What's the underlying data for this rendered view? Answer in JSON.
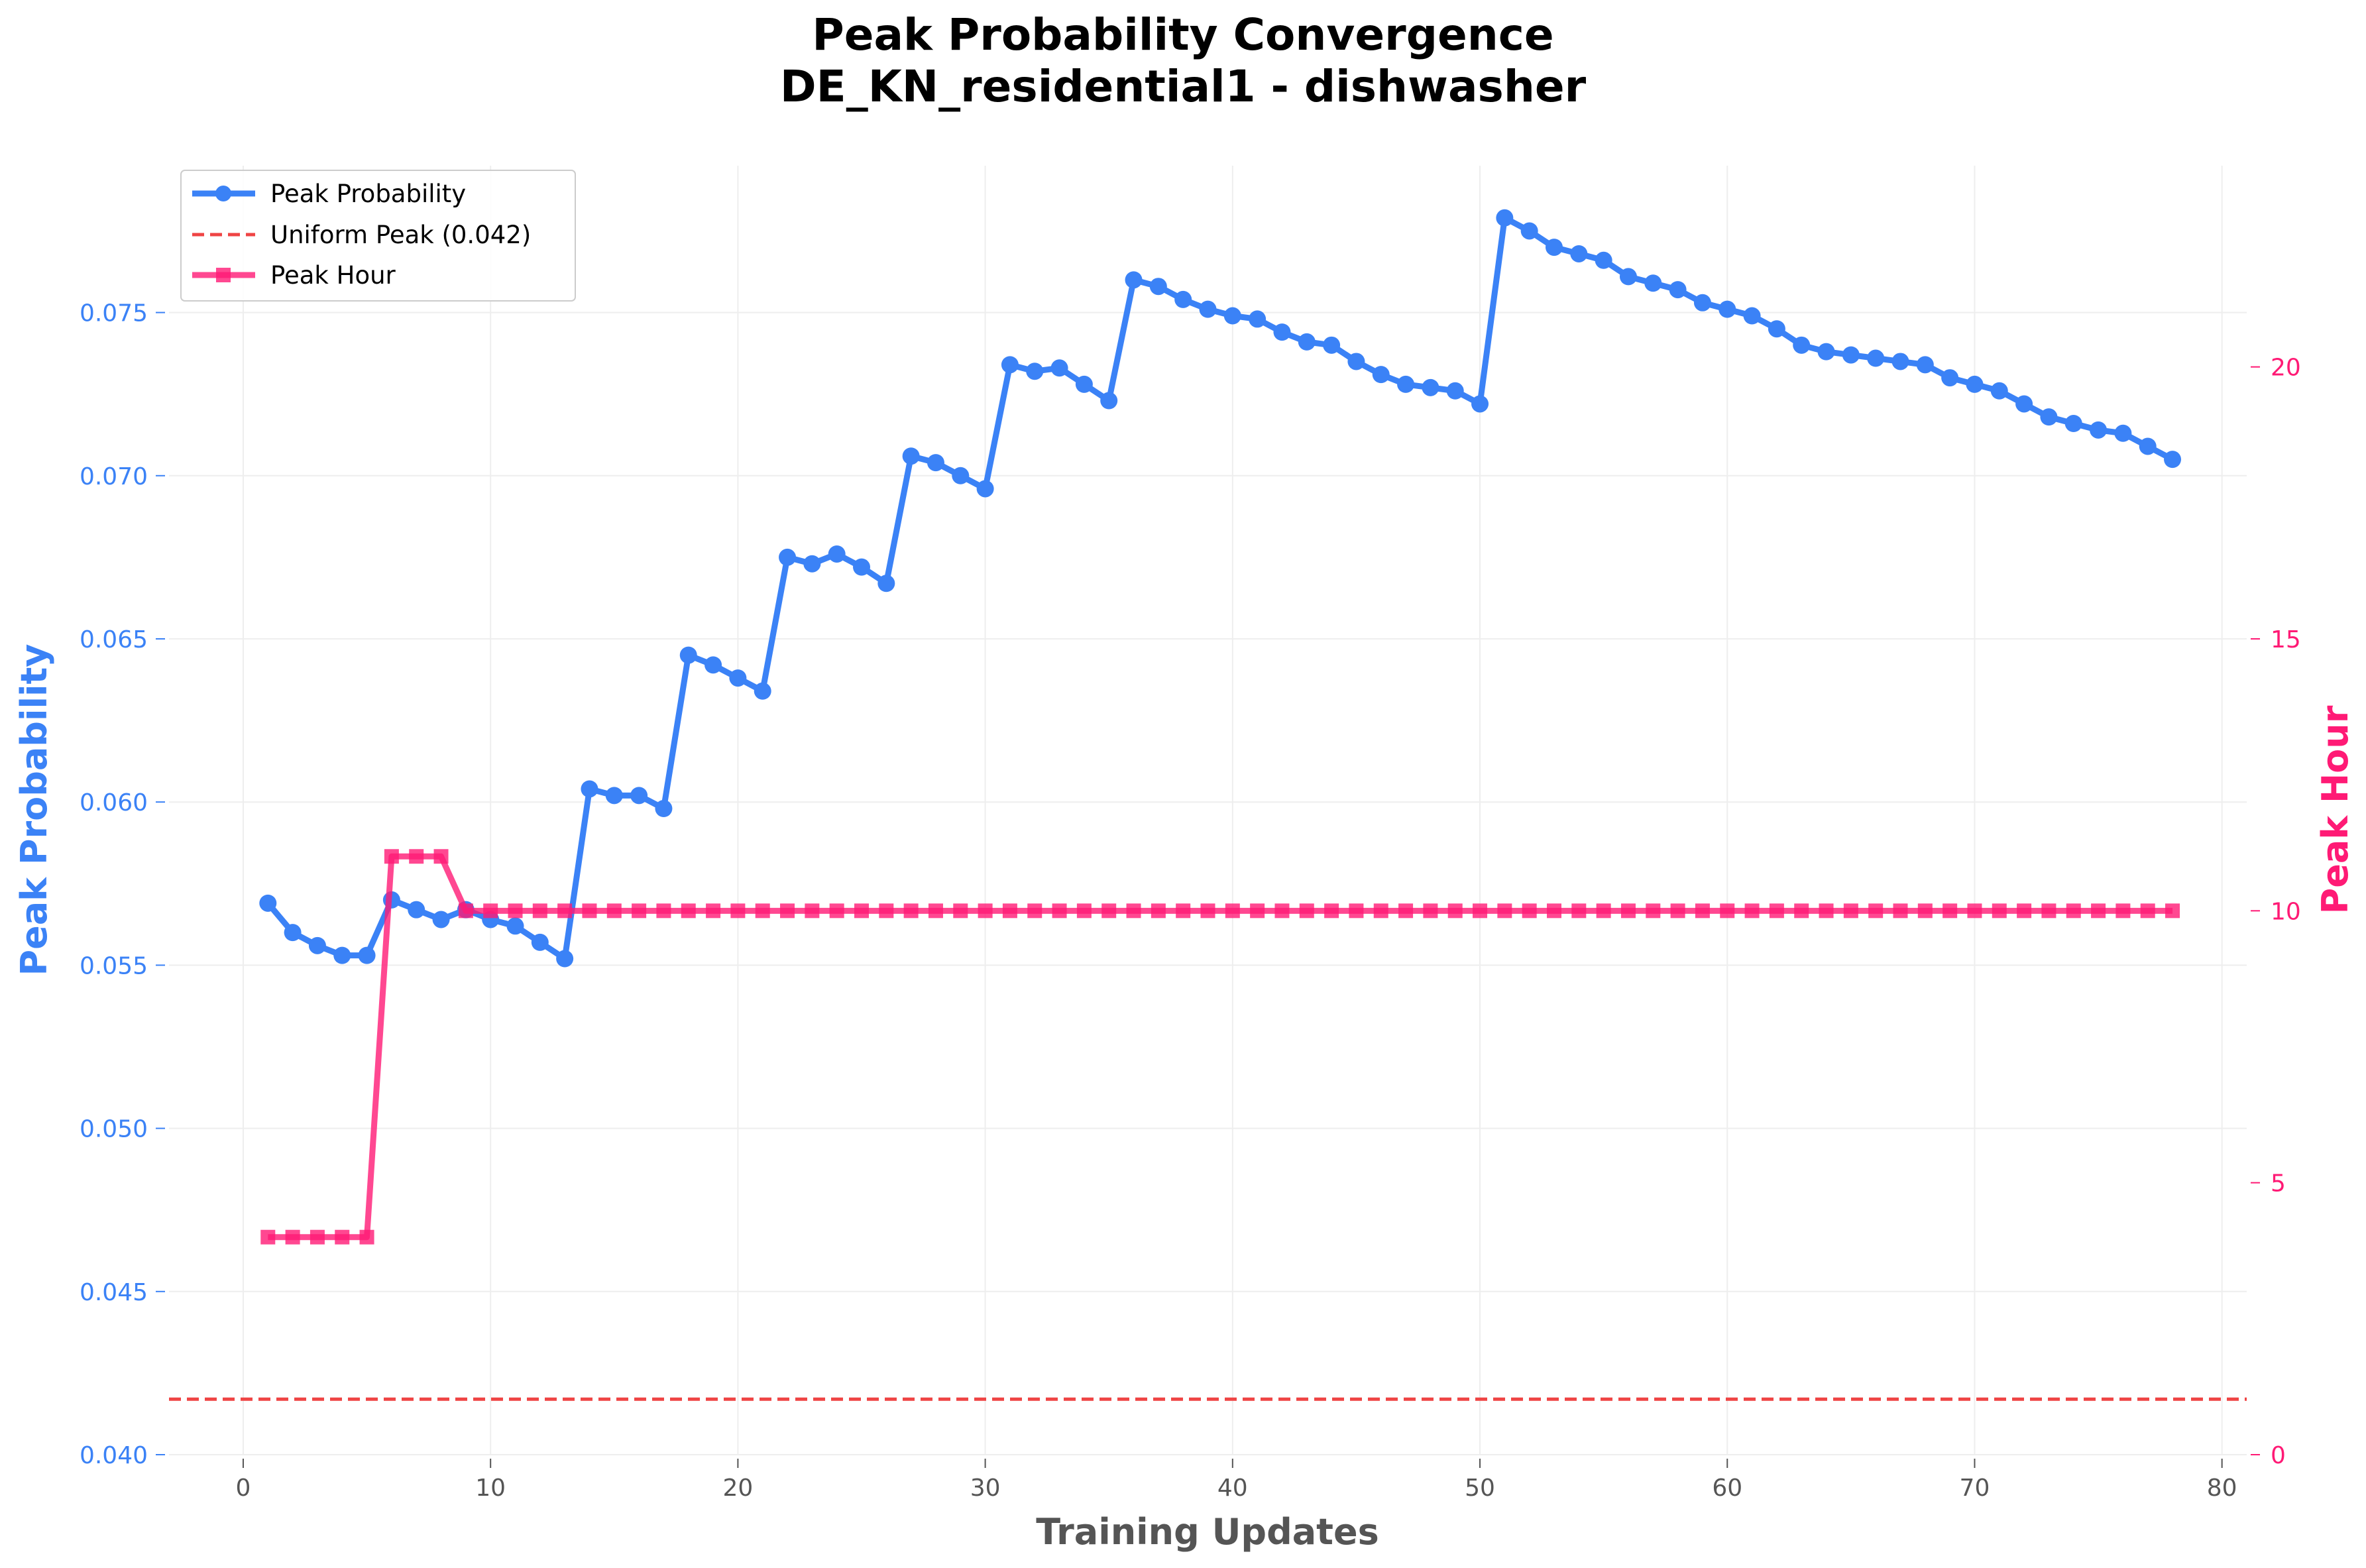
{
  "chart_data": {
    "type": "line",
    "title": "Peak Probability Convergence",
    "subtitle": "DE_KN_residential1 - dishwasher",
    "xlabel": "Training Updates",
    "ylabel": "Peak Probability",
    "y2label": "Peak Hour",
    "xlim": [
      -3,
      81
    ],
    "ylim": [
      0.04,
      0.0795
    ],
    "y2lim": [
      0,
      23.7
    ],
    "xticks": [
      0,
      10,
      20,
      30,
      40,
      50,
      60,
      70,
      80
    ],
    "yticks": [
      "0.040",
      "0.045",
      "0.050",
      "0.055",
      "0.060",
      "0.065",
      "0.070",
      "0.075"
    ],
    "y2ticks": [
      0,
      5,
      10,
      15,
      20
    ],
    "grid": true,
    "legend_position": "top-left",
    "series": [
      {
        "name": "Peak Probability",
        "axis": "left",
        "color": "#3b82f6",
        "marker": "circle",
        "x": [
          1,
          2,
          3,
          4,
          5,
          6,
          7,
          8,
          9,
          10,
          11,
          12,
          13,
          14,
          15,
          16,
          17,
          18,
          19,
          20,
          21,
          22,
          23,
          24,
          25,
          26,
          27,
          28,
          29,
          30,
          31,
          32,
          33,
          34,
          35,
          36,
          37,
          38,
          39,
          40,
          41,
          42,
          43,
          44,
          45,
          46,
          47,
          48,
          49,
          50,
          51,
          52,
          53,
          54,
          55,
          56,
          57,
          58,
          59,
          60,
          61,
          62,
          63,
          64,
          65,
          66,
          67,
          68,
          69,
          70,
          71,
          72,
          73,
          74,
          75,
          76,
          77,
          78
        ],
        "values": [
          0.0569,
          0.056,
          0.0556,
          0.0553,
          0.0553,
          0.057,
          0.0567,
          0.0564,
          0.0567,
          0.0564,
          0.0562,
          0.0557,
          0.0552,
          0.0604,
          0.0602,
          0.0602,
          0.0598,
          0.0645,
          0.0642,
          0.0638,
          0.0634,
          0.0675,
          0.0673,
          0.0676,
          0.0672,
          0.0667,
          0.0706,
          0.0704,
          0.07,
          0.0696,
          0.0734,
          0.0732,
          0.0733,
          0.0728,
          0.0723,
          0.076,
          0.0758,
          0.0754,
          0.0751,
          0.0749,
          0.0748,
          0.0744,
          0.0741,
          0.074,
          0.0735,
          0.0731,
          0.0728,
          0.0727,
          0.0726,
          0.0722,
          0.0779,
          0.0775,
          0.077,
          0.0768,
          0.0766,
          0.0761,
          0.0759,
          0.0757,
          0.0753,
          0.0751,
          0.0749,
          0.0745,
          0.074,
          0.0738,
          0.0737,
          0.0736,
          0.0735,
          0.0734,
          0.073,
          0.0728,
          0.0726,
          0.0722,
          0.0718,
          0.0716,
          0.0714,
          0.0713,
          0.0709,
          0.0705
        ]
      },
      {
        "name": "Uniform Peak (0.042)",
        "axis": "left",
        "color": "#ef4444",
        "style": "dashed",
        "value": 0.0417
      },
      {
        "name": "Peak Hour",
        "axis": "right",
        "color": "#ff1a75",
        "marker": "square",
        "x": [
          1,
          2,
          3,
          4,
          5,
          6,
          7,
          8,
          9,
          10,
          11,
          12,
          13,
          14,
          15,
          16,
          17,
          18,
          19,
          20,
          21,
          22,
          23,
          24,
          25,
          26,
          27,
          28,
          29,
          30,
          31,
          32,
          33,
          34,
          35,
          36,
          37,
          38,
          39,
          40,
          41,
          42,
          43,
          44,
          45,
          46,
          47,
          48,
          49,
          50,
          51,
          52,
          53,
          54,
          55,
          56,
          57,
          58,
          59,
          60,
          61,
          62,
          63,
          64,
          65,
          66,
          67,
          68,
          69,
          70,
          71,
          72,
          73,
          74,
          75,
          76,
          77,
          78
        ],
        "values": [
          4,
          4,
          4,
          4,
          4,
          11,
          11,
          11,
          10,
          10,
          10,
          10,
          10,
          10,
          10,
          10,
          10,
          10,
          10,
          10,
          10,
          10,
          10,
          10,
          10,
          10,
          10,
          10,
          10,
          10,
          10,
          10,
          10,
          10,
          10,
          10,
          10,
          10,
          10,
          10,
          10,
          10,
          10,
          10,
          10,
          10,
          10,
          10,
          10,
          10,
          10,
          10,
          10,
          10,
          10,
          10,
          10,
          10,
          10,
          10,
          10,
          10,
          10,
          10,
          10,
          10,
          10,
          10,
          10,
          10,
          10,
          10,
          10,
          10,
          10,
          10,
          10,
          10
        ]
      }
    ]
  }
}
